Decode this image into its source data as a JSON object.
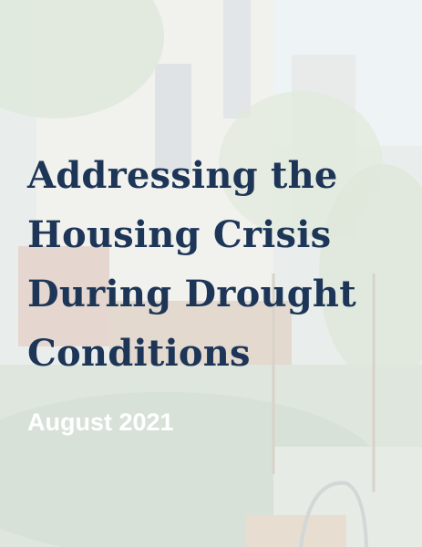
{
  "cover": {
    "title_lines": [
      "Addressing the",
      "Housing Crisis",
      "During Drought",
      "Conditions"
    ],
    "date": "August 2021"
  }
}
